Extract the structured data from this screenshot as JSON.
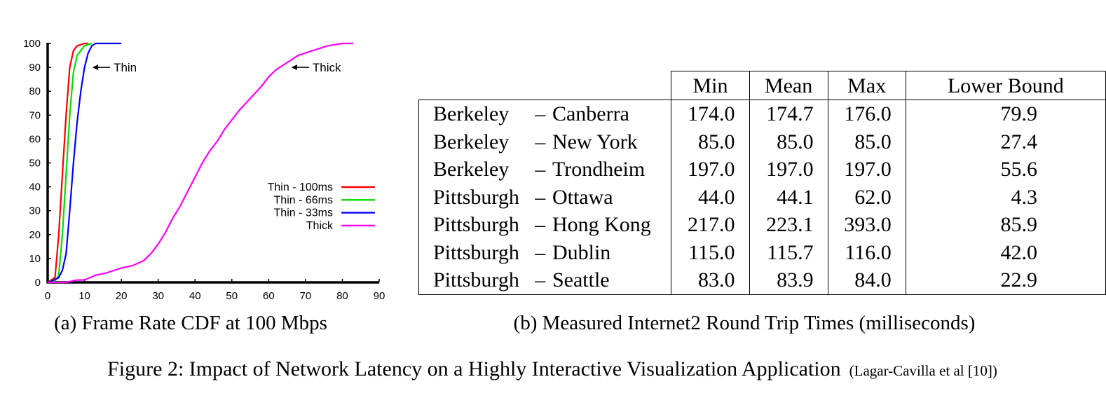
{
  "chart_data": {
    "type": "line",
    "xlim": [
      0,
      90
    ],
    "ylim": [
      0,
      100
    ],
    "xticks": [
      "0",
      "10",
      "20",
      "30",
      "40",
      "50",
      "60",
      "70",
      "80",
      "90"
    ],
    "yticks": [
      "0",
      "10",
      "20",
      "30",
      "40",
      "50",
      "60",
      "70",
      "80",
      "90",
      "100"
    ],
    "grid": false,
    "legend_position": "center-right",
    "annotations": [
      {
        "text": "Thin",
        "x": 12,
        "y": 90
      },
      {
        "text": "Thick",
        "x": 66,
        "y": 90
      }
    ],
    "series": [
      {
        "name": "Thin - 100ms",
        "color": "#ff0000",
        "x": [
          0,
          2,
          3,
          4,
          5,
          6,
          7,
          8,
          9,
          10,
          11
        ],
        "y": [
          0,
          2,
          20,
          45,
          70,
          90,
          97,
          99,
          99.5,
          100,
          100
        ]
      },
      {
        "name": "Thin - 66ms",
        "color": "#00dd00",
        "x": [
          0,
          2,
          3,
          4,
          5,
          6,
          7,
          8,
          9,
          10,
          11,
          12
        ],
        "y": [
          0,
          0.5,
          3,
          20,
          45,
          70,
          88,
          95,
          97,
          99,
          99.5,
          100
        ]
      },
      {
        "name": "Thin - 33ms",
        "color": "#0000ff",
        "x": [
          0,
          1,
          3,
          4,
          5,
          6,
          7,
          8,
          9,
          10,
          11,
          12,
          13,
          20
        ],
        "y": [
          0,
          0.5,
          2,
          5,
          12,
          30,
          50,
          67,
          80,
          90,
          96,
          99,
          100,
          100
        ]
      },
      {
        "name": "Thick",
        "color": "#ff00ff",
        "x": [
          0,
          5,
          8,
          10,
          13,
          16,
          20,
          23,
          26,
          28,
          30,
          32,
          34,
          36,
          38,
          40,
          42,
          44,
          46,
          48,
          50,
          52,
          55,
          58,
          60,
          62,
          64,
          66,
          68,
          70,
          72,
          74,
          76,
          78,
          80,
          82,
          83
        ],
        "y": [
          0,
          0,
          1,
          1,
          3,
          4,
          6,
          7,
          9,
          12,
          16,
          21,
          27,
          32,
          38,
          44,
          50,
          55,
          59,
          64,
          68,
          72,
          77,
          82,
          86,
          89,
          91,
          93,
          95,
          96,
          97,
          98,
          99,
          99.5,
          100,
          100,
          100
        ]
      }
    ]
  },
  "captions": {
    "a": "(a) Frame Rate CDF at 100 Mbps",
    "b": "(b) Measured Internet2 Round Trip Times (milliseconds)",
    "figure": "Figure 2: Impact of Network Latency on a Highly Interactive Visualization Application",
    "citation": "(Lagar-Cavilla et al [10])"
  },
  "table": {
    "headers": [
      "Min",
      "Mean",
      "Max",
      "Lower Bound"
    ],
    "rows": [
      {
        "src": "Berkeley",
        "dash": "–",
        "dst": "Canberra",
        "min": "174.0",
        "mean": "174.7",
        "max": "176.0",
        "lb": "79.9"
      },
      {
        "src": "Berkeley",
        "dash": "–",
        "dst": "New York",
        "min": "85.0",
        "mean": "85.0",
        "max": "85.0",
        "lb": "27.4"
      },
      {
        "src": "Berkeley",
        "dash": "–",
        "dst": "Trondheim",
        "min": "197.0",
        "mean": "197.0",
        "max": "197.0",
        "lb": "55.6"
      },
      {
        "src": "Pittsburgh",
        "dash": "–",
        "dst": "Ottawa",
        "min": "44.0",
        "mean": "44.1",
        "max": "62.0",
        "lb": "4.3"
      },
      {
        "src": "Pittsburgh",
        "dash": "–",
        "dst": "Hong Kong",
        "min": "217.0",
        "mean": "223.1",
        "max": "393.0",
        "lb": "85.9"
      },
      {
        "src": "Pittsburgh",
        "dash": "–",
        "dst": "Dublin",
        "min": "115.0",
        "mean": "115.7",
        "max": "116.0",
        "lb": "42.0"
      },
      {
        "src": "Pittsburgh",
        "dash": "–",
        "dst": "Seattle",
        "min": "83.0",
        "mean": "83.9",
        "max": "84.0",
        "lb": "22.9"
      }
    ]
  }
}
